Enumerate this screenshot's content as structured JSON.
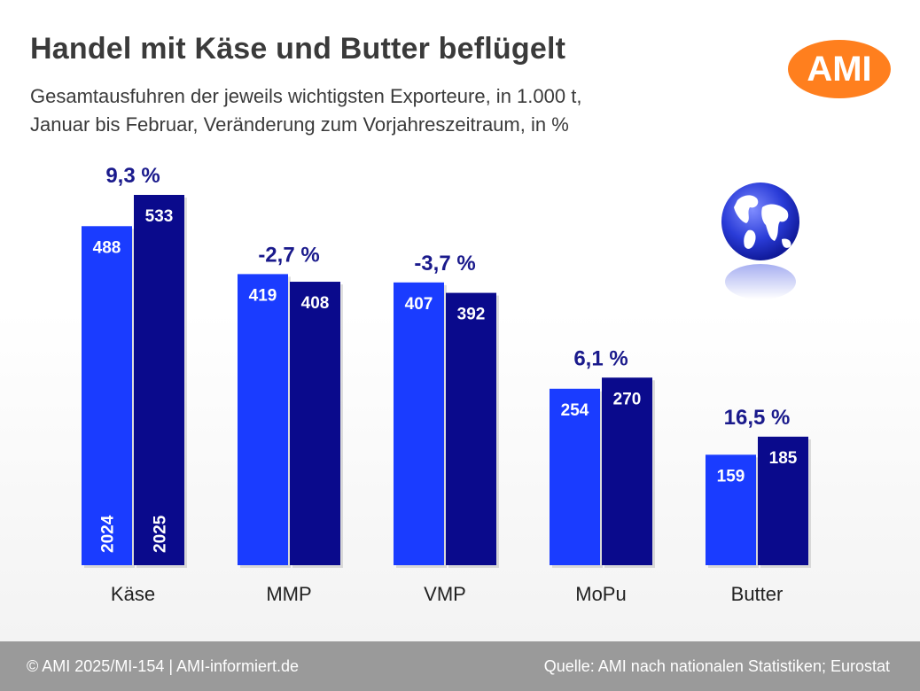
{
  "header": {
    "title": "Handel mit Käse und Butter beflügelt",
    "subtitle_line1": "Gesamtausfuhren der jeweils wichtigsten Exporteure, in 1.000 t,",
    "subtitle_line2": "Januar bis Februar, Veränderung zum Vorjahreszeitraum, in %"
  },
  "logo": {
    "text": "AMI",
    "color": "#ff7f1e"
  },
  "decoration": {
    "icon": "globe-icon"
  },
  "footer": {
    "left": "© AMI 2025/MI-154 | AMI-informiert.de",
    "right": "Quelle:  AMI nach nationalen Statistiken; Eurostat"
  },
  "chart_data": {
    "type": "bar",
    "categories": [
      "Käse",
      "MMP",
      "VMP",
      "MoPu",
      "Butter"
    ],
    "series": [
      {
        "name": "2024",
        "values": [
          488,
          419,
          407,
          254,
          159
        ],
        "color": "#1a3cff"
      },
      {
        "name": "2025",
        "values": [
          533,
          408,
          392,
          270,
          185
        ],
        "color": "#0a0a8c"
      }
    ],
    "change_labels": [
      "9,3 %",
      "-2,7 %",
      "-3,7 %",
      "6,1 %",
      "16,5 %"
    ],
    "value_labels": {
      "2024": [
        "488",
        "419",
        "407",
        "254",
        "159"
      ],
      "2025": [
        "533",
        "408",
        "392",
        "270",
        "185"
      ]
    },
    "ylim": [
      0,
      533
    ],
    "grid": false,
    "legend": "inside-first-group"
  }
}
